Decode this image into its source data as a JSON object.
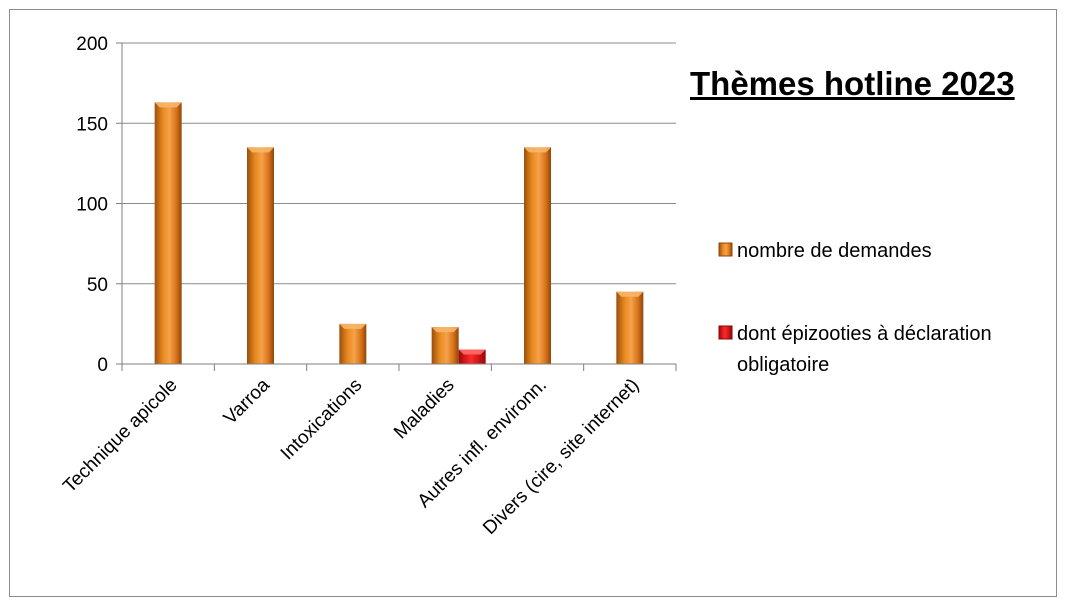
{
  "chart_data": {
    "type": "bar",
    "title": "Thèmes hotline 2023",
    "categories": [
      "Technique apicole",
      "Varroa",
      "Intoxications",
      "Maladies",
      "Autres infl. environn.",
      "Divers (cire, site internet)"
    ],
    "series": [
      {
        "name": "nombre de demandes",
        "values": [
          163,
          135,
          25,
          23,
          135,
          45
        ],
        "color": "#e07b1a"
      },
      {
        "name": "dont épizooties à déclaration obligatoire",
        "values": [
          null,
          null,
          null,
          9,
          null,
          null
        ],
        "color": "#e01010"
      }
    ],
    "yticks": [
      "0",
      "50",
      "100",
      "150",
      "200"
    ],
    "ylim": [
      0,
      200
    ],
    "grid": true,
    "legend_position": "right",
    "legend_lines": [
      [
        "nombre de demandes"
      ],
      [
        "dont épizooties à déclaration",
        "obligatoire"
      ]
    ]
  }
}
